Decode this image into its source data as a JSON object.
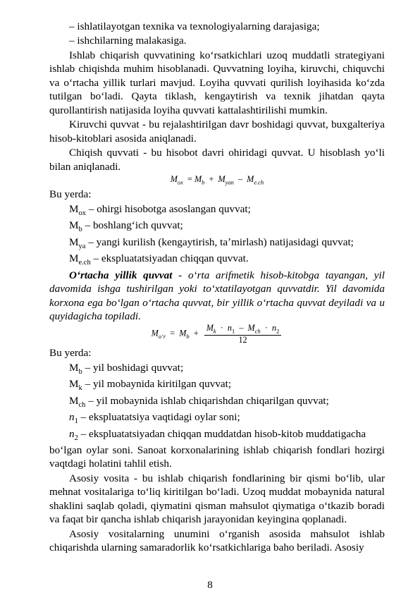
{
  "b1": "– ishlatilayotgan texnika va texnologiyalarning darajasiga;",
  "b2": "– ishchilarning malakasiga.",
  "p1": "Ishlab chiqarish quvvatining koʻrsatkichlari uzoq muddatli strategiyani ishlab chiqishda muhim hisoblanadi. Quvvatning loyiha, kiruvchi, chiquvchi va oʻrtacha yillik turlari mavjud. Loyiha quvvati qurilish loyihasida koʻzda tutilgan boʻladi. Qayta tiklash, kengaytirish va texnik jihatdan qayta qurollantirish natijasida loyiha quvvati kattalashtirilishi mumkin.",
  "p2": "Kiruvchi quvvat - bu rejalashtirilgan davr boshidagi quvvat, buxgalteriya hisob-kitoblari asosida aniqlanadi.",
  "p3": "Chiqish quvvati - bu hisobot davri ohiridagi quvvat. U hisoblash yoʻli bilan  aniqlanadi.",
  "buYerda": "Bu yerda:",
  "d1": {
    "sym": "M",
    "sub": "ox",
    "txt": " –  ohirgi hisobotga asoslangan quvvat;"
  },
  "d2": {
    "sym": "M",
    "sub": "b",
    "txt": "  – boshlangʻich quvvat;"
  },
  "d3": {
    "sym": "M",
    "sub": "ya",
    "txt": " – yangi kurilish (kengaytirish, taʼmirlash) natijasidagi quvvat;"
  },
  "d4": {
    "sym": "M",
    "sub": "e.ch",
    "txt": " – ekspluatatsiyadan chiqqan quvvat."
  },
  "p4_head": "Oʻrtacha yillik quvvat",
  "p4_tail": " - oʻrta arifmetik hisob-kitobga tayangan, yil davomida ishga tushirilgan yoki toʻxtatilayotgan quvvatdir. Yil davomida korxona ega boʻlgan oʻrtacha quvvat, bir yillik oʻrtacha quvvat deyiladi va u quyidagicha topiladi.",
  "d5": {
    "sym": "M",
    "sub": "b",
    "txt": " – yil boshidagi quvvat;"
  },
  "d6": {
    "sym": "M",
    "sub": "k",
    "txt": " – yil mobaynida kiritilgan quvvat;"
  },
  "d7": {
    "sym": "M",
    "sub": "ch",
    "txt": " – yil mobaynida ishlab chiqarishdan  chiqarilgan quvvat;"
  },
  "d8": {
    "sym": "n",
    "sub": "1",
    "txt": " – ekspluatatsiya vaqtidagi oylar soni;",
    "it": true
  },
  "d9": {
    "sym": "n",
    "sub": "2",
    "txt": " – ekspluatatsiyadan chiqqan muddatdan hisob-kitob muddatigacha",
    "it": true
  },
  "p5": "boʻlgan oylar soni. Sanoat korxonalarining ishlab chiqarish fondlari hozirgi vaqtdagi holatini tahlil etish.",
  "p6": "Asosiy vosita - bu ishlab chiqarish fondlarining bir qismi boʻlib, ular mehnat vositalariga toʻliq kiritilgan boʻladi. Uzoq muddat mobaynida natural shaklini saqlab qoladi, qiymatini qisman mahsulot qiymatiga oʻtkazib boradi va faqat bir qancha ishlab chiqarish jarayonidan keyingina qoplanadi.",
  "p7": "Asosiy vositalarning unumini oʻrganish asosida mahsulot ishlab chiqarishda ularning samaradorlik koʻrsatkichlariga baho beriladi. Asosiy",
  "pageNum": "8",
  "f1": {
    "M": "M",
    "ox": "ox",
    "eq": "=",
    "b": "b",
    "plus": "+",
    "yan": "yan",
    "minus": "–",
    "ech": "e.ch"
  },
  "f2": {
    "M": "M",
    "or": "oʻr",
    "eq": "=",
    "b": "b",
    "plus": "+",
    "k": "k",
    "n1": "n",
    "s1": "1",
    "ch": "ch",
    "s2": "2",
    "den": "12",
    "dot": "·",
    "minus": "–"
  }
}
